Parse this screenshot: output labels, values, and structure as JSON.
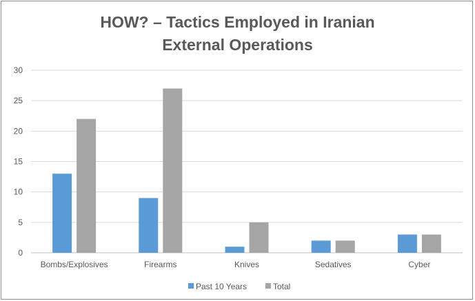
{
  "chart_data": {
    "type": "bar",
    "title_lines": [
      "HOW? – Tactics Employed in Iranian",
      "External Operations"
    ],
    "categories": [
      "Bombs/Explosives",
      "Firearms",
      "Knives",
      "Sedatives",
      "Cyber"
    ],
    "series": [
      {
        "name": "Past 10 Years",
        "values": [
          13,
          9,
          1,
          2,
          3
        ],
        "color": "#5b9bd5"
      },
      {
        "name": "Total",
        "values": [
          22,
          27,
          5,
          2,
          3
        ],
        "color": "#a5a5a5"
      }
    ],
    "ylim": [
      0,
      30
    ],
    "yticks": [
      0,
      5,
      10,
      15,
      20,
      25,
      30
    ],
    "grid": true,
    "legend_position": "bottom",
    "xlabel": "",
    "ylabel": ""
  }
}
